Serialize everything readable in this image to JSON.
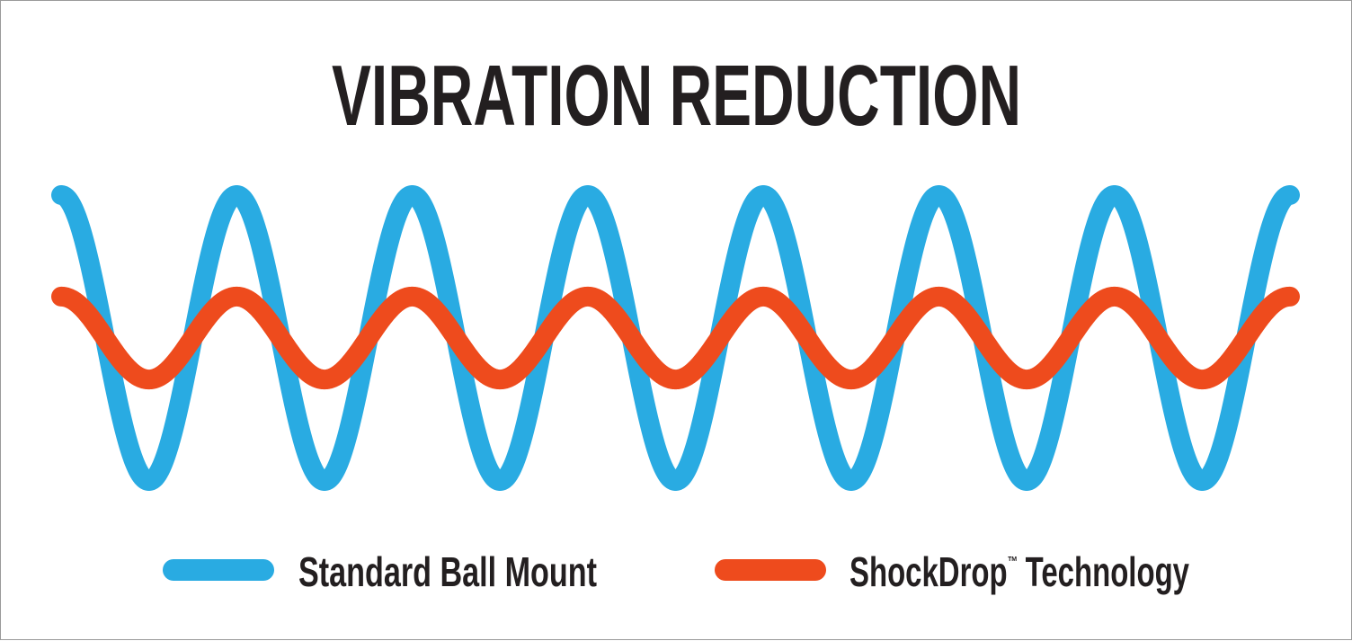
{
  "chart_data": {
    "type": "line",
    "title": "VIBRATION REDUCTION",
    "xlabel": "",
    "ylabel": "",
    "grid": false,
    "legend_position": "bottom",
    "cycles": 7,
    "series": [
      {
        "name": "Standard Ball Mount",
        "amplitude": 1.0,
        "color": "#29abe2"
      },
      {
        "name": "ShockDrop™ Technology",
        "amplitude": 0.29,
        "color": "#ee4b1d"
      }
    ]
  },
  "legend": {
    "standard": "Standard Ball Mount",
    "shockdrop_name": "ShockDrop",
    "shockdrop_tm": "™",
    "shockdrop_rest": "Technology"
  }
}
